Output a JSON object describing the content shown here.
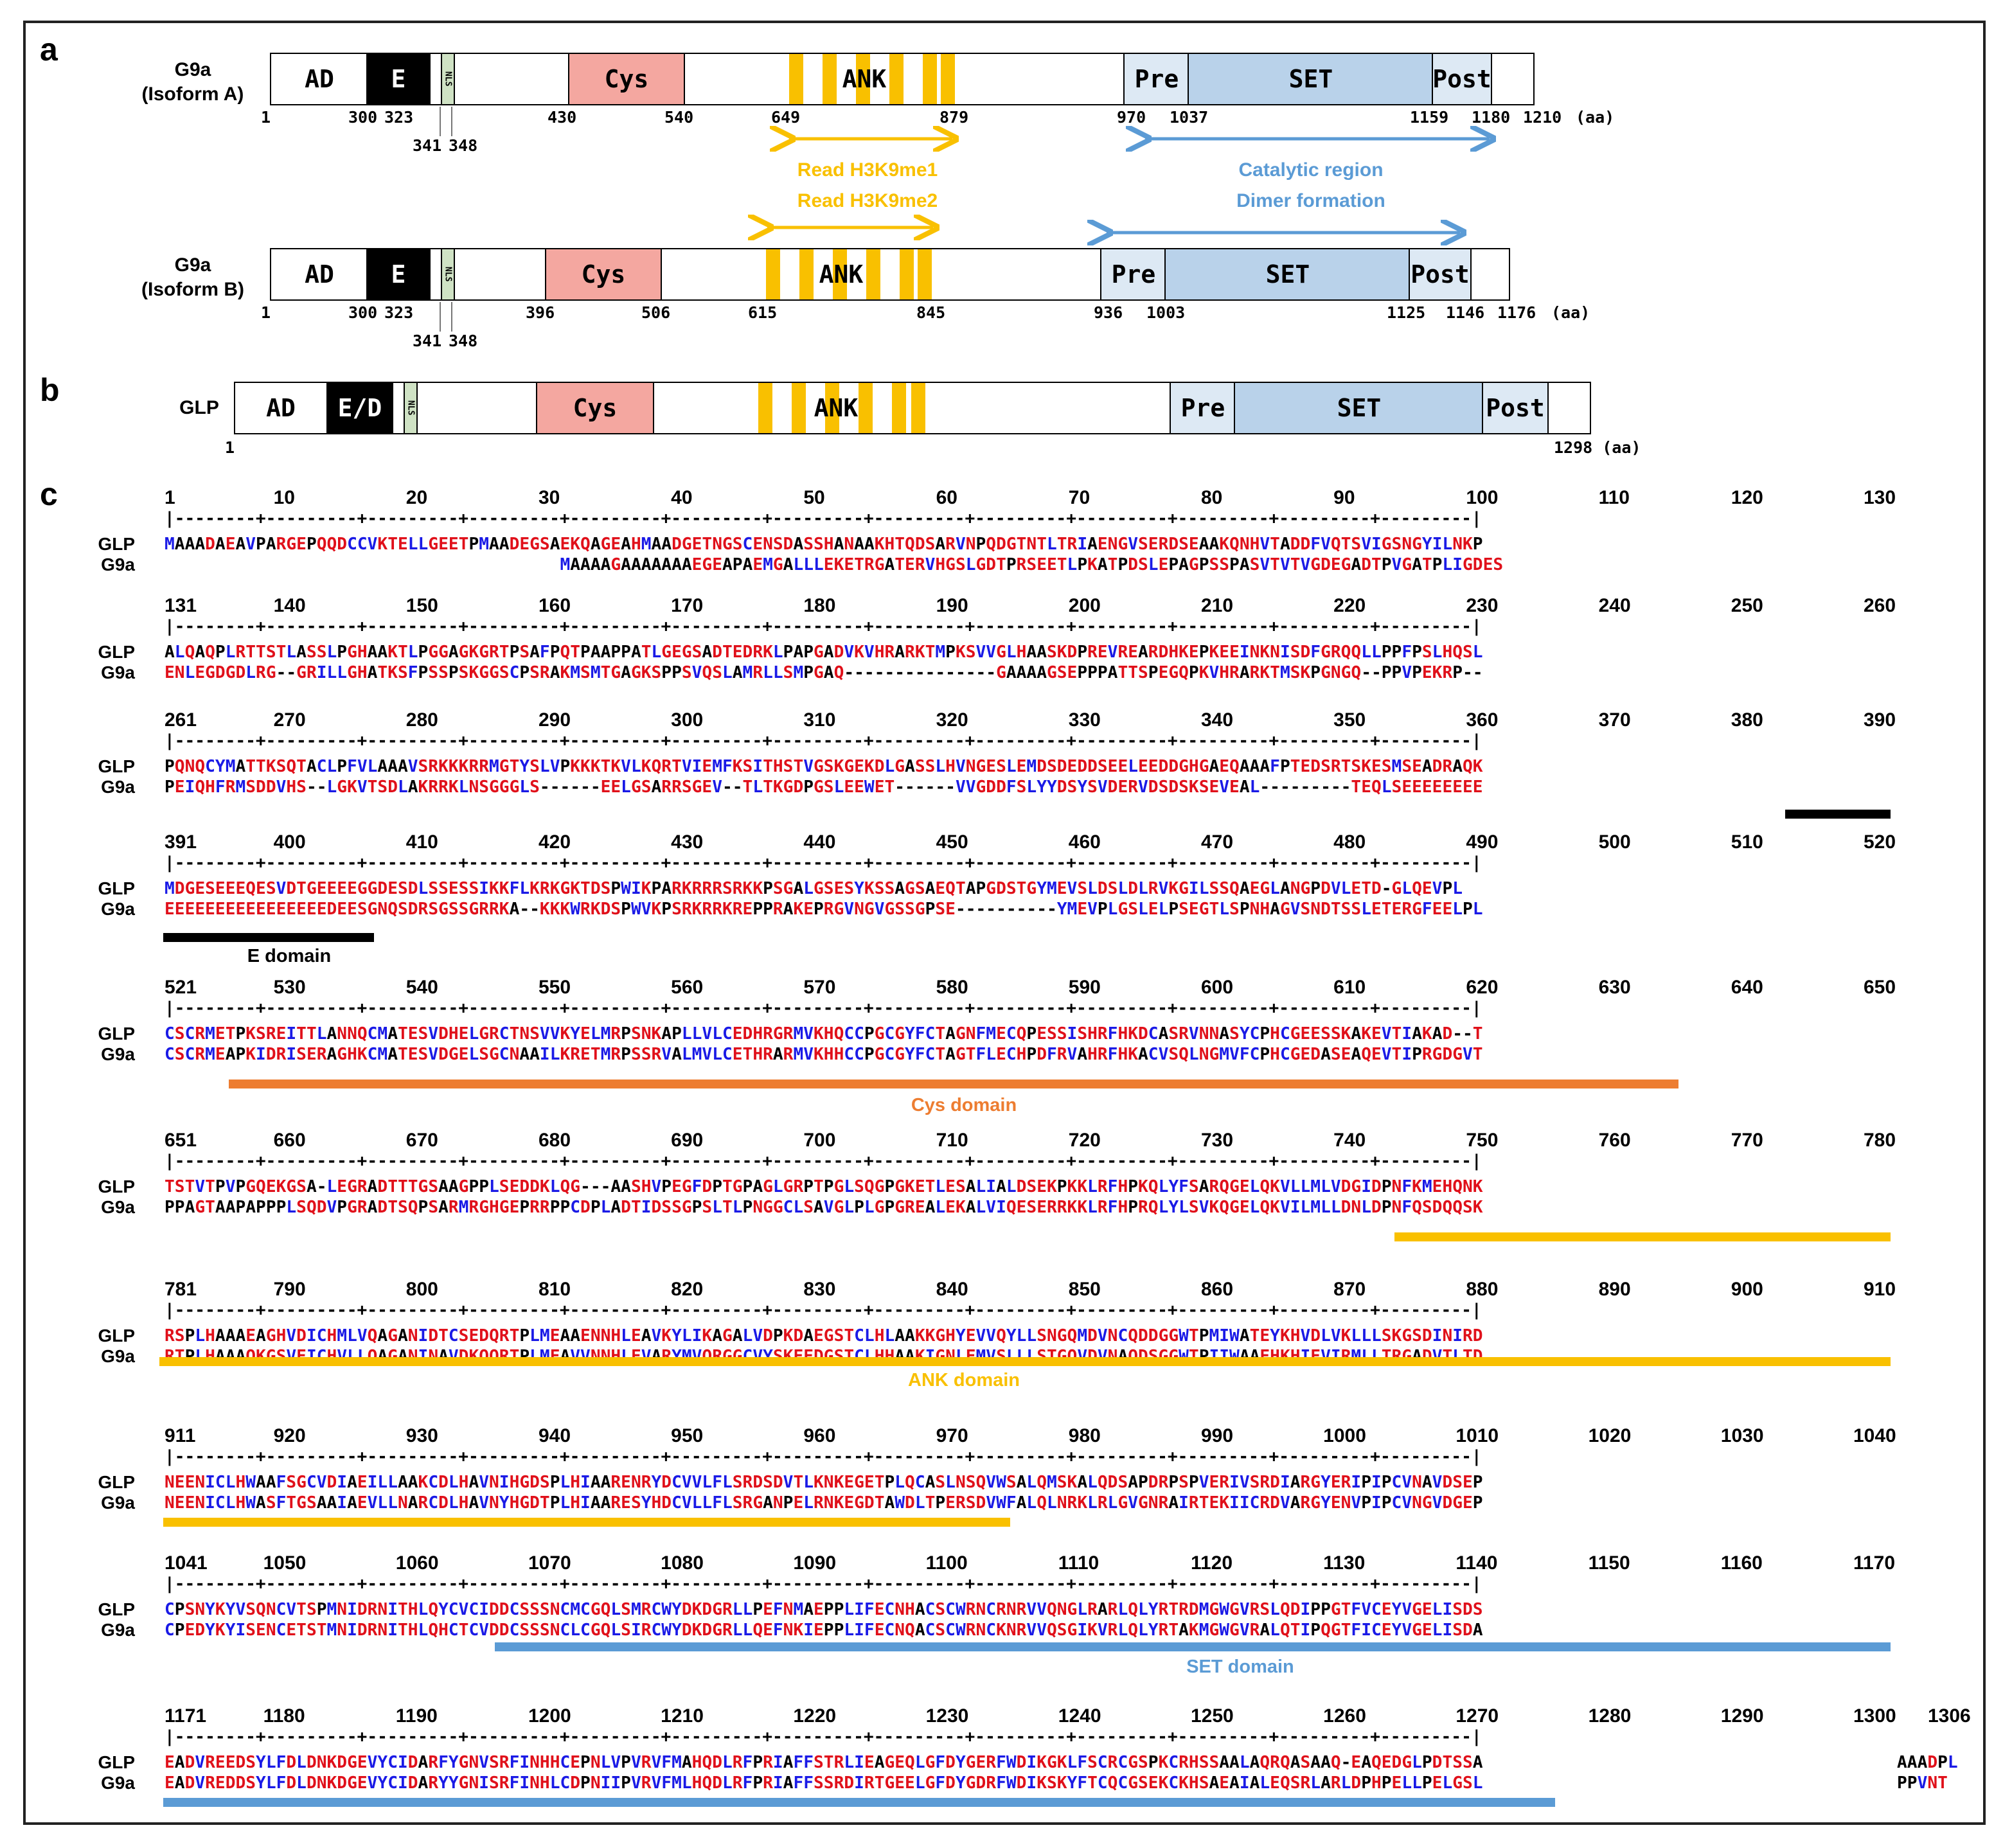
{
  "panels": {
    "a": "a",
    "b": "b",
    "c": "c"
  },
  "colors": {
    "cys": "#f4a7a0",
    "set": "#b9d2ea",
    "pre_post": "#dde9f4",
    "ank": "#f9c000",
    "nls": "#cfe2c4",
    "e_bar": "#000000",
    "cys_bar": "#ed7d31",
    "ank_bar": "#f9c000",
    "set_bar": "#5b9bd5",
    "arrow_yellow": "#f9c000",
    "arrow_blue": "#5b9bd5",
    "residue_red": "#e0101a",
    "residue_blue": "#1a1ae6"
  },
  "isoformA": {
    "name_line1": "G9a",
    "name_line2": "(Isoform A)",
    "domains": {
      "ad": "AD",
      "e": "E",
      "nls": "NLS",
      "cys": "Cys",
      "ank": "ANK",
      "pre": "Pre",
      "set": "SET",
      "post": "Post"
    },
    "ticks": [
      "1",
      "300",
      "323",
      "430",
      "540",
      "649",
      "879",
      "970",
      "1037",
      "1159",
      "1180",
      "1210",
      "(aa)"
    ],
    "ticks_below": [
      "341",
      "348"
    ],
    "ank_note1": "Read H3K9me1",
    "ank_note2": "Read H3K9me2",
    "set_note1": "Catalytic region",
    "set_note2": "Dimer formation"
  },
  "isoformB": {
    "name_line1": "G9a",
    "name_line2": "(Isoform B)",
    "domains": {
      "ad": "AD",
      "e": "E",
      "nls": "NLS",
      "cys": "Cys",
      "ank": "ANK",
      "pre": "Pre",
      "set": "SET",
      "post": "Post"
    },
    "ticks": [
      "1",
      "300",
      "323",
      "396",
      "506",
      "615",
      "845",
      "936",
      "1003",
      "1125",
      "1146",
      "1176",
      "(aa)"
    ],
    "ticks_below": [
      "341",
      "348"
    ]
  },
  "glp": {
    "name": "GLP",
    "domains": {
      "ad": "AD",
      "ed": "E/D",
      "nls": "NLS",
      "cys": "Cys",
      "ank": "ANK",
      "pre": "Pre",
      "set": "SET",
      "post": "Post"
    },
    "ticks": [
      "1",
      "1298 (aa)"
    ]
  },
  "alignment": {
    "seq_names": [
      "GLP",
      "G9a"
    ],
    "blocks": [
      {
        "nums": [
          "1",
          "10",
          "20",
          "30",
          "40",
          "50",
          "60",
          "70",
          "80",
          "90",
          "100",
          "110",
          "120",
          "130"
        ],
        "ruler": "|----+----+----+----+----+----+----+----+----+----+----+----+----+----+----+----+----+----+----+----+----+----+----+----+----+----+----+----+----+----+----+----+----+----+----+----+----+----+----+----+----+----+----+----+----+----+----+----+----+----+----+----+----+----+----+----+----+----+----+----+----+----+----+----+----+----+----+----+----+----+----+----+----+----+----+----+----+----+----+----+----+----+----+----+----+----+----+----+----+----+----+----+----+----+----+----+----+----+----+----+----+----+----+----+----+----+----+----+----+----+----+----+----+----+----+----+----+----+----+----+----+----+----+----+----+----+----+----+----+---|",
        "glp": "MAAADAEAVPARGEPQQDCCVKTELLGEETPMAADEGSAEKQAGEAHMAADGETNGSCENSDASSHANAAKHTQDSARVNPQDGTNTLTRIAENGVSERDSEAAKQNHVTADDFVQTSVIGSNGYILNKP",
        "g9a": "                                       MAAAAGAAAAAAAEGEAPAEMGALLLEKETRGATERVHGSLGDTPRSEETLPKATPDSLEPAGPSSPASVTVTVGDEGADTPVGATPLIGDES"
      },
      {
        "nums": [
          "131",
          "140",
          "150",
          "160",
          "170",
          "180",
          "190",
          "200",
          "210",
          "220",
          "230",
          "240",
          "250",
          "260"
        ],
        "glp": "ALQAQPLRTTSTLASSLPGHAAKTLPGGAGKGRTPSAFPQTPAAPPATLGEGSADTEDRKLPAPGADVKVHRARKTMPKSVVGLHAASKDPREVREARDHKEPKEEINKNISDFGRQQLLPPFPSLHQSL",
        "g9a": "ENLEGDGDLRG--GRILLGHATKSFPSSPSKGGSCPSRAKMSMTGAGKSPPSVQSLAMRLLSMPGAQ---------------GAAAAGSEPPPATTSPEGQPKVHRARKTMSKPGNGQ--PPVPEKRP--"
      },
      {
        "nums": [
          "261",
          "270",
          "280",
          "290",
          "300",
          "310",
          "320",
          "330",
          "340",
          "350",
          "360",
          "370",
          "380",
          "390"
        ],
        "glp": "PQNQCYMATTKSQTACLPFVLAAAVSRKKKRRMGTYSLVPKKKTKVLKQRTVIEMFKSITHSTVGSKGEKDLGASSLHVNGESLEMDSDEDDSEELEEDDGHGAEQAAAFPTEDSRTSKESMSEADRAQK",
        "g9a": "PEIQHFRMSDDVHS--LGKVTSDLAKRRKLNSGGGLS------EELGSARRSGEV--TLTKGDPGSLEEWET------VVGDDFSLYYDSYSVDERVDSDSKSEVEAL---------TEQLSEEEEEEEE"
      },
      {
        "nums": [
          "391",
          "400",
          "410",
          "420",
          "430",
          "440",
          "450",
          "460",
          "470",
          "480",
          "490",
          "500",
          "510",
          "520"
        ],
        "glp": "MDGESEEEQESVDTGEEEEGGDESDLSSESSIKKFLKRKGKTDSPWIKPARKRRRSRKKPSGALGSESYKSSAGSAEQTAPGDSTGYMEVSLDSLDLRVKGILSSQAEGLANGPDVLETD-GLQEVPL",
        "g9a": "EEEEEEEEEEEEEEEEDEESGNQSDRSGSSGRRKA--KKKWRKDSPWVKPSRKRRKREPPRAKEPRGVNGVGSSGPSE----------YMEVPLGSLELPSEGTLSPNHAGVSNDTSSLETERGFEELPL"
      },
      {
        "nums": [
          "521",
          "530",
          "540",
          "550",
          "560",
          "570",
          "580",
          "590",
          "600",
          "610",
          "620",
          "630",
          "640",
          "650"
        ],
        "glp": "CSCRMETPKSREITTLANNQCMATESVDHELGRCTNSVVKYELMRPSNKAPLLVLCEDHRGRMVKHQCCPGCGYFCTAGNFMECQPESSISHRFHKDCASRVNNASYCPHCGEESSKAKEVTIAKAD--T",
        "g9a": "CSCRMEAPKIDRISERAGHKCMATESVDGELSGCNAAILKRETMRPSSRVALMVLCETHRARMVKHHCCPGCGYFCTAGTFLECHPDFRVAHRFHKACVSQLNGMVFCPHCGEDASEAQEVTIPRGDGVT"
      },
      {
        "nums": [
          "651",
          "660",
          "670",
          "680",
          "690",
          "700",
          "710",
          "720",
          "730",
          "740",
          "750",
          "760",
          "770",
          "780"
        ],
        "glp": "TSTVTPVPGQEKGSA-LEGRADTTTGSAAGPPLSEDDKLQG---AASHVPEGFDPTGPAGLGRPTPGLSQGPGKETLESALIALDSEKPKKLRFHPKQLYFSARQGELQKVLLMLVDGIDPNFKMEHQNK",
        "g9a": "PPAGTAAPAPPPLSQDVPGRADTSQPSARMRGHGEPRRPPCDPLADTIDSSGPSLTLPNGGCLSAVGLPLGPGREALEKALVIQESERRKKLRFHPRQLYLSVKQGELQKVILMLLDNLDPNFQSDQQSK"
      },
      {
        "nums": [
          "781",
          "790",
          "800",
          "810",
          "820",
          "830",
          "840",
          "850",
          "860",
          "870",
          "880",
          "890",
          "900",
          "910"
        ],
        "glp": "RSPLHAAAEAGHVDICHMLVQAGANIDTCSEDQRTPLMEAAENNHLEAVKYLIKAGALVDPKDAEGSTCLHLAAKKGHYEVVQYLLSNGQMDVNCQDDGGWTPMIWATEYKHVDLVKLLLSKGSDINIRD",
        "g9a": "RTPLHAAAQKGSVEICHVLLQAGANINAVDKQQRTPLMEAVVNNHLEVARYMVQRGGCVYSKEEDGSTCLHHAAKIGNLEMVSLLLSTGQVDVNAQDSGGWTPIIWAAEHKHIEVIRMLLTRGADVTLTD"
      },
      {
        "nums": [
          "911",
          "920",
          "930",
          "940",
          "950",
          "960",
          "970",
          "980",
          "990",
          "1000",
          "1010",
          "1020",
          "1030",
          "1040"
        ],
        "glp": "NEENICLHWAAFSGCVDIAEILLAAKCDLHAVNIHGDSPLHIAARENRYDCVVLFLSRDSDVTLKNKEGETPLQCASLNSQVWSALQMSKALQDSAPDRPSPVERIVSRDIARGYERIPIPCVNAVDSEP",
        "g9a": "NEENICLHWASFTGSAAIAEVLLNARCDLHAVNYHGDTPLHIAARESYHDCVLLFLSRGANPELRNKEGDTAWDLTPERSDVWFALQLNRKLRLGVGNRAIRTEKIICRDVARGYENVPIPCVNGVDGEP"
      },
      {
        "nums": [
          "1041",
          "1050",
          "1060",
          "1070",
          "1080",
          "1090",
          "1100",
          "1110",
          "1120",
          "1130",
          "1140",
          "1150",
          "1160",
          "1170"
        ],
        "glp": "CPSNYKYVSQNCVTSPMNIDRNITHLQYCVCIDDCSSSNCMCGQLSMRCWYDKDGRLLPEFNMAEPPLIFECNHACSCWRNCRNRVVQNGLRARLQLYRTRDMGWGVRSLQDIPPGTFVCEYVGELISDS",
        "g9a": "CPEDYKYISENCETSTMNIDRNITHLQHCTCVDDCSSSNCLCGQLSIRCWYDKDGRLLQEFNKIEPPLIFECNQACSCWRNCKNRVVQSGIKVRLQLYRTAKMGWGVRALQTIPQGTFICEYVGELISDA"
      },
      {
        "nums": [
          "1171",
          "1180",
          "1190",
          "1200",
          "1210",
          "1220",
          "1230",
          "1240",
          "1250",
          "1260",
          "1270",
          "1280",
          "1290",
          "1300"
        ],
        "num_extra": "1306",
        "glp": "EADVREEDSYLFDLDNKDGEVYCIDARFYGNVSRFINHHCEPNLVPVRVFMAHQDLRFPRIAFFSTRLIEAGEQLGFDYGERFWDIKGKLFSCRCGSPKCRHSSAALAQRQASAAQ-EAQEDGLPDTSSA",
        "glp_tail": "AAADPL",
        "g9a": "EADVREDDSYLFDLDNKDGEVYCIDARYYGNISRFINHLCDPNIIPVRVFMLHQDLRFPRIAFFSSRDIRTGEELGFDYGDRFWDIKSKYFTCQCGSEKCKHSAEAIALEQSRLARLDPHPELLPELGSL",
        "g9a_tail": "PPVNT"
      }
    ],
    "domain_labels": {
      "e": "E domain",
      "cys": "Cys domain",
      "ank": "ANK domain",
      "set": "SET domain"
    }
  }
}
